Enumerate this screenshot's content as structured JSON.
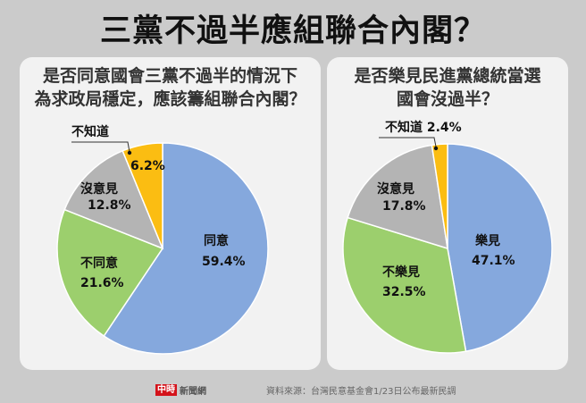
{
  "title": "三黨不過半應組聯合內閣？",
  "panels": [
    {
      "question_line1": "是否同意國會三黨不過半的情況下",
      "question_line2": "為求政局穩定，應該籌組聯合內閣？",
      "labels": {
        "agree_name": "同意",
        "agree_value": "59.4%",
        "disagree_name": "不同意",
        "disagree_value": "21.6%",
        "noopinion_name": "沒意見",
        "noopinion_value": "12.8%",
        "dontknow_name": "不知道",
        "dontknow_value": "6.2%"
      }
    },
    {
      "question_line1": "是否樂見民進黨總統當選",
      "question_line2": "國會沒過半？",
      "labels": {
        "glad_name": "樂見",
        "glad_value": "47.1%",
        "notglad_name": "不樂見",
        "notglad_value": "32.5%",
        "noopinion_name": "沒意見",
        "noopinion_value": "17.8%",
        "dontknow_label": "不知道 2.4%"
      }
    }
  ],
  "footer": {
    "logo_badge": "中時",
    "logo_text": "新聞網",
    "source": "資料來源：台灣民意基金會1/23日公布最新民調"
  },
  "colors": {
    "blue": "#85a8dd",
    "green": "#9ccf6d",
    "gray": "#b4b4b4",
    "yellow": "#fbbd12"
  },
  "chart_data": [
    {
      "type": "pie",
      "title": "是否同意國會三黨不過半的情況下為求政局穩定，應該籌組聯合內閣？",
      "categories": [
        "同意",
        "不同意",
        "沒意見",
        "不知道"
      ],
      "values": [
        59.4,
        21.6,
        12.8,
        6.2
      ],
      "colors": [
        "#85a8dd",
        "#9ccf6d",
        "#b4b4b4",
        "#fbbd12"
      ],
      "start_angle": "12 o'clock, clockwise"
    },
    {
      "type": "pie",
      "title": "是否樂見民進黨總統當選國會沒過半？",
      "categories": [
        "樂見",
        "不樂見",
        "沒意見",
        "不知道"
      ],
      "values": [
        47.1,
        32.5,
        17.8,
        2.4
      ],
      "colors": [
        "#85a8dd",
        "#9ccf6d",
        "#b4b4b4",
        "#fbbd12"
      ],
      "start_angle": "12 o'clock, clockwise"
    }
  ]
}
